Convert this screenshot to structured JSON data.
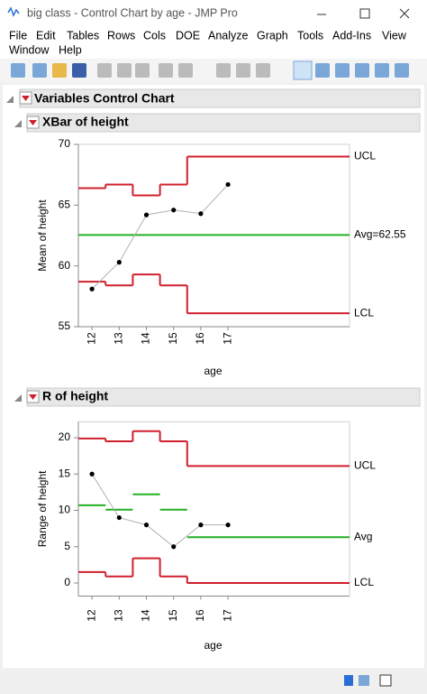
{
  "window": {
    "title": "big class - Control Chart by age - JMP Pro"
  },
  "menu": [
    "File",
    "Edit",
    "Tables",
    "Rows",
    "Cols",
    "DOE",
    "Analyze",
    "Graph",
    "Tools",
    "Add-Ins",
    "View",
    "Window",
    "Help"
  ],
  "report": {
    "title": "Variables Control Chart"
  },
  "chart_data": [
    {
      "type": "control",
      "title": "XBar of height",
      "ylabel": "Mean of height",
      "xlabel": "age",
      "categories": [
        "12",
        "13",
        "14",
        "15",
        "16",
        "17"
      ],
      "values": [
        58.1,
        60.3,
        64.2,
        64.6,
        64.3,
        66.7
      ],
      "color": "#000000",
      "line_color": "#b0b0b0",
      "ylim": [
        55,
        70
      ],
      "yticks": [
        55,
        60,
        65,
        70
      ],
      "limits": [
        {
          "name": "UCL",
          "color": "#d0202e",
          "values": [
            66.4,
            66.7,
            65.8,
            66.7,
            69.0,
            69.0
          ]
        },
        {
          "name": "Avg=62.55",
          "color": "#22b022",
          "value": 62.55
        },
        {
          "name": "LCL",
          "color": "#d0202e",
          "values": [
            58.7,
            58.4,
            59.3,
            58.4,
            56.1,
            56.1
          ]
        }
      ]
    },
    {
      "type": "control",
      "title": "R of height",
      "ylabel": "Range of height",
      "xlabel": "age",
      "categories": [
        "12",
        "13",
        "14",
        "15",
        "16",
        "17"
      ],
      "values": [
        15,
        9,
        8,
        5,
        8,
        8
      ],
      "color": "#000000",
      "line_color": "#b0b0b0",
      "ylim": [
        -1.8,
        22.2
      ],
      "yticks": [
        0,
        5,
        10,
        15,
        20
      ],
      "limits": [
        {
          "name": "UCL",
          "color": "#d0202e",
          "values": [
            19.9,
            19.5,
            20.9,
            19.5,
            16.1,
            16.1
          ]
        },
        {
          "name": "Avg",
          "color": "#22b022",
          "values": [
            10.7,
            10.1,
            12.2,
            10.1,
            6.3,
            6.3
          ],
          "connected": false
        },
        {
          "name": "LCL",
          "color": "#d0202e",
          "values": [
            1.5,
            0.9,
            3.4,
            0.9,
            0,
            0
          ]
        }
      ]
    }
  ]
}
